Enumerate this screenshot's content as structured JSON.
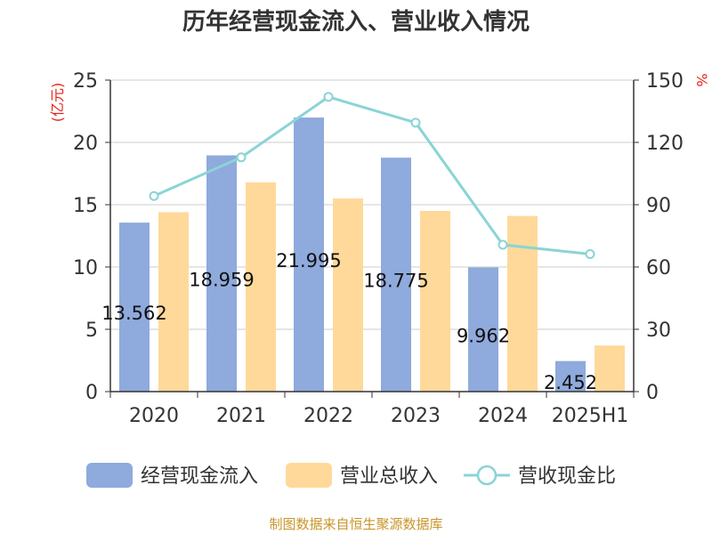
{
  "chart_data": {
    "type": "bar",
    "title": "历年经营现金流入、营业收入情况",
    "categories": [
      "2020",
      "2021",
      "2022",
      "2023",
      "2024",
      "2025H1"
    ],
    "series": [
      {
        "name": "经营现金流入",
        "type": "bar",
        "axis": "left",
        "color": "#8faadc",
        "values": [
          13.562,
          18.959,
          21.995,
          18.775,
          9.962,
          2.452
        ],
        "labels": [
          "13.562",
          "18.959",
          "21.995",
          "18.775",
          "9.962",
          "2.452"
        ]
      },
      {
        "name": "营业总收入",
        "type": "bar",
        "axis": "left",
        "color": "#ffd99a",
        "values": [
          14.4,
          16.8,
          15.5,
          14.5,
          14.1,
          3.7
        ]
      },
      {
        "name": "营收现金比",
        "type": "line",
        "axis": "right",
        "color": "#8ad4d6",
        "values": [
          94.2,
          112.8,
          141.9,
          129.5,
          70.7,
          66.2
        ]
      }
    ],
    "y_left": {
      "unit": "(亿元)",
      "range": [
        0,
        25
      ],
      "ticks": [
        "0",
        "5",
        "10",
        "15",
        "20",
        "25"
      ]
    },
    "y_right": {
      "unit": "%",
      "range": [
        0,
        150
      ],
      "ticks": [
        "0",
        "30",
        "60",
        "90",
        "120",
        "150"
      ]
    },
    "grid": true,
    "legend": "bottom"
  },
  "source_note": "制图数据来自恒生聚源数据库"
}
